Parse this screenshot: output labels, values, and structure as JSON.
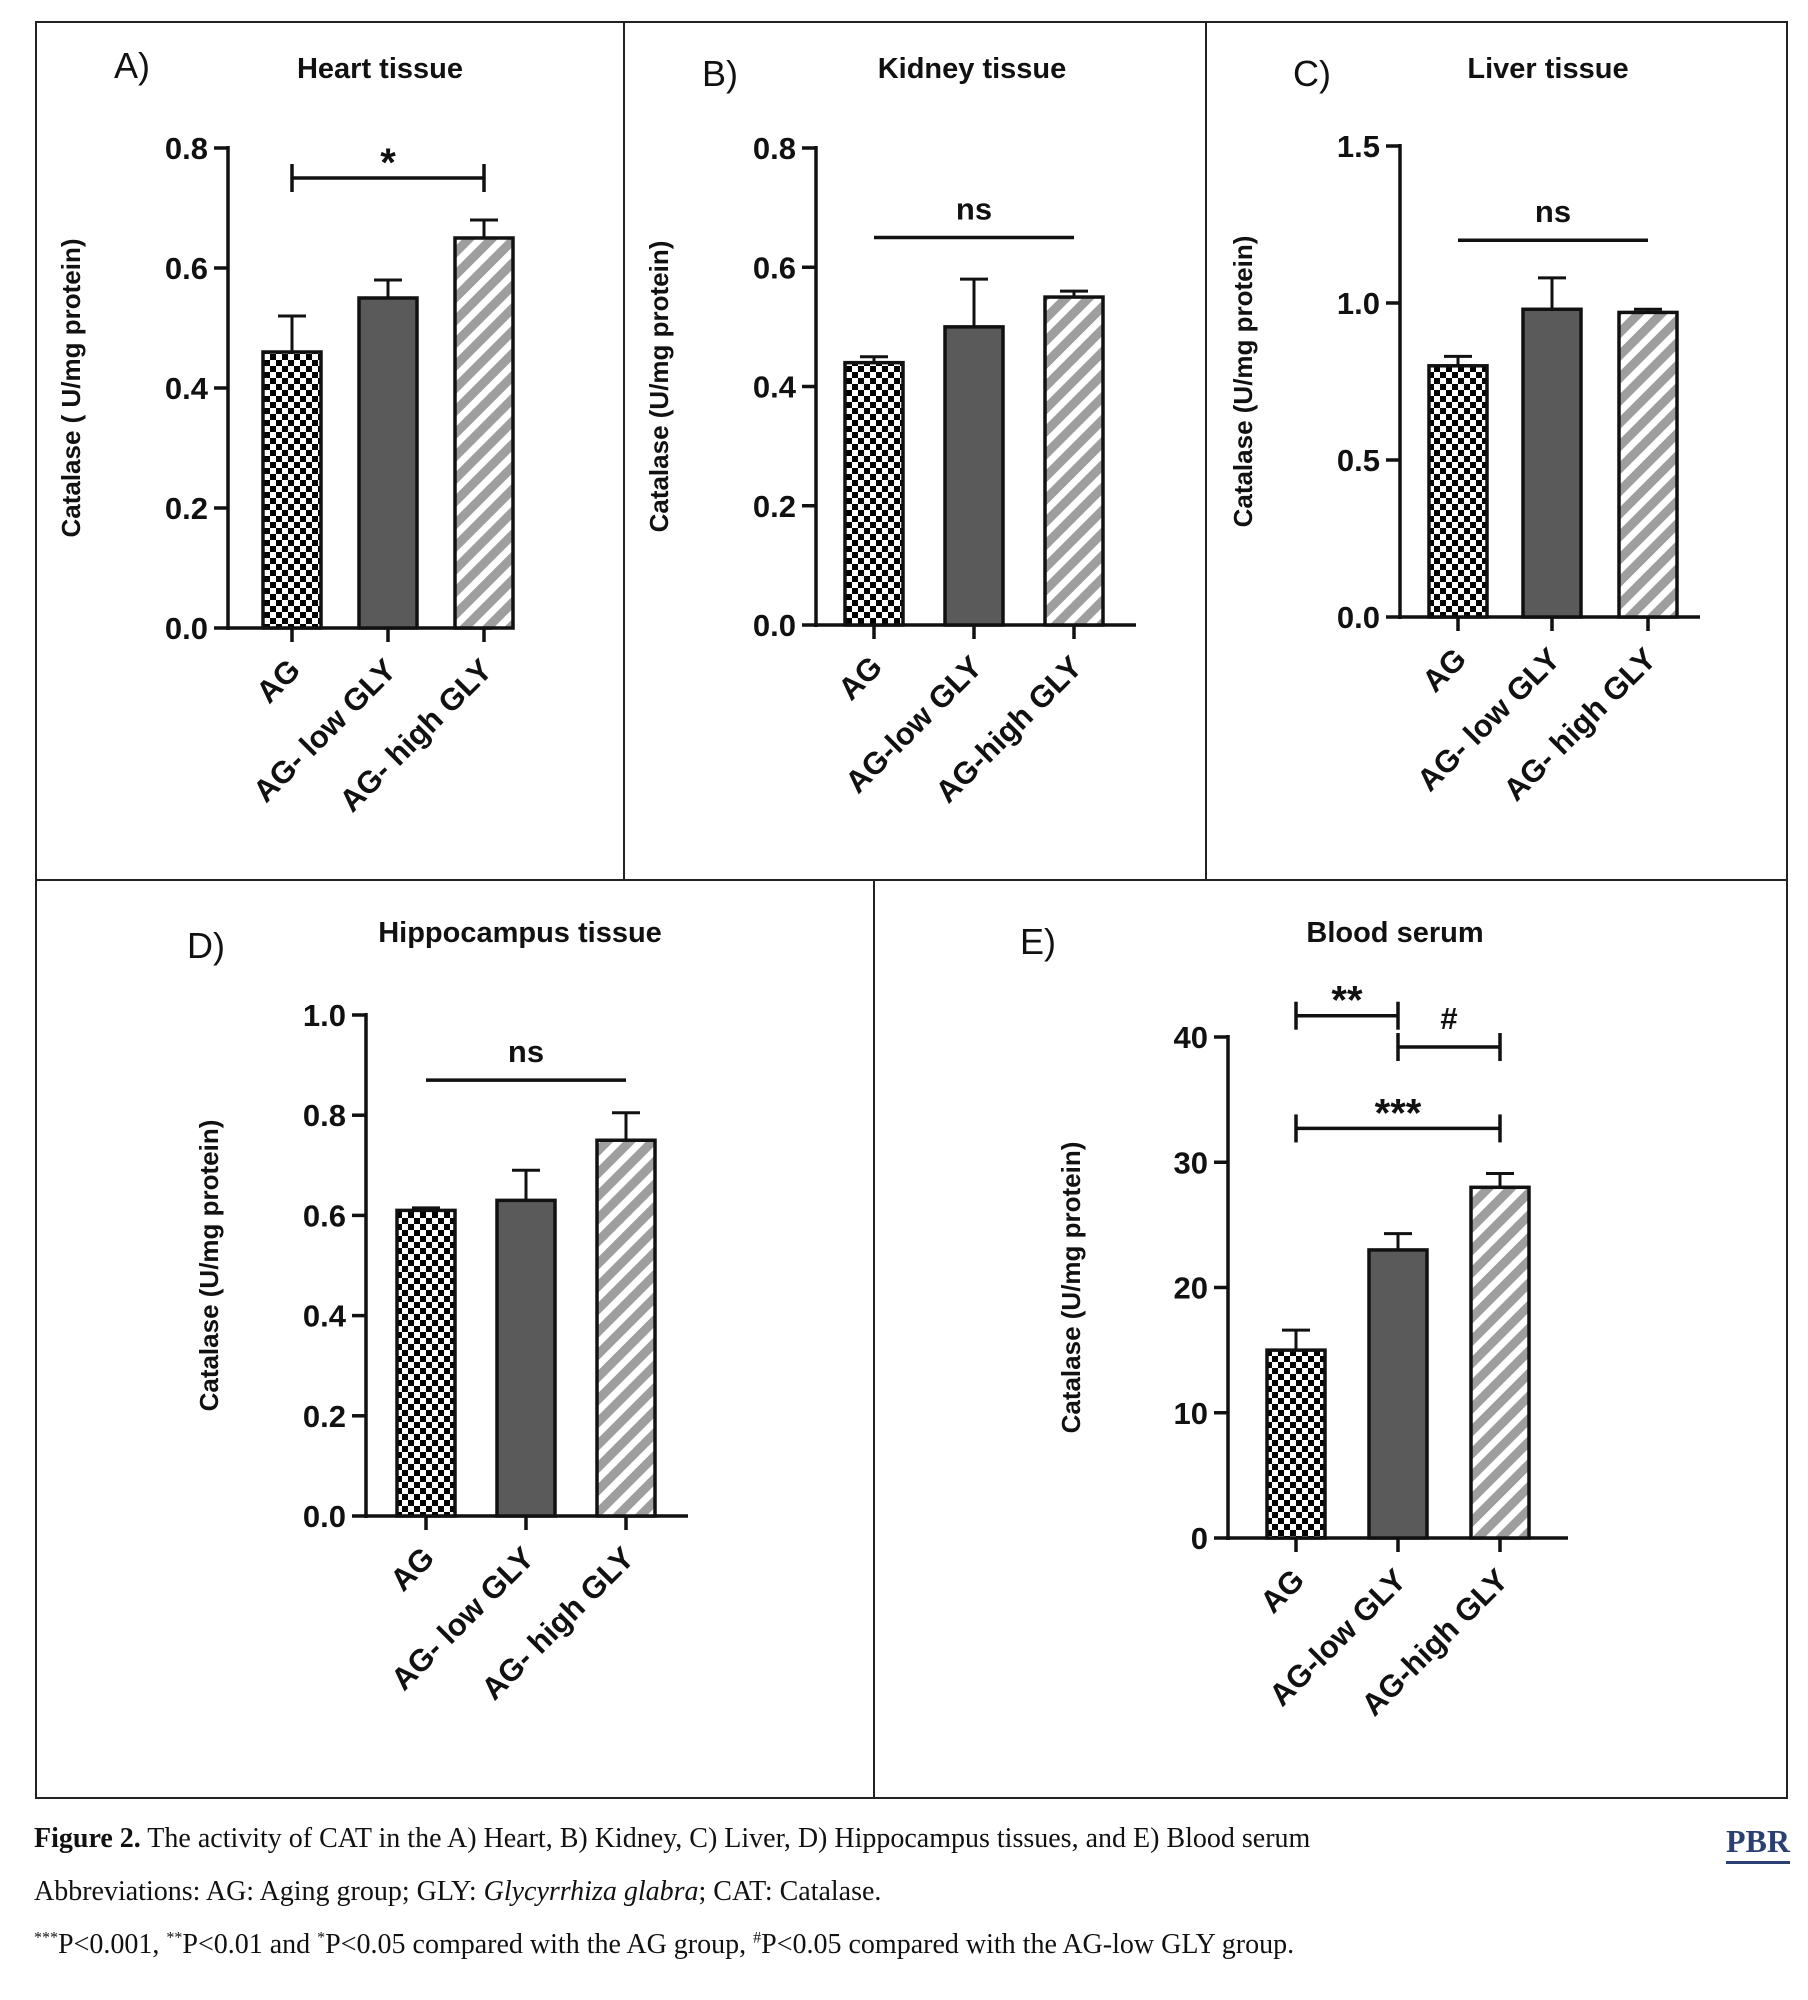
{
  "chart_data": [
    {
      "type": "bar",
      "panel_label": "A)",
      "title": "Heart tissue",
      "ylabel": "Catalase ( U/mg protein)",
      "categories": [
        "AG",
        "AG- low GLY",
        "AG- high GLY"
      ],
      "values": [
        0.46,
        0.55,
        0.65
      ],
      "errors": [
        0.06,
        0.03,
        0.03
      ],
      "ylim": [
        0,
        0.8
      ],
      "yticks": [
        0,
        0.2,
        0.4,
        0.6,
        0.8
      ],
      "ytick_labels": [
        "0.0",
        "0.2",
        "0.4",
        "0.6",
        "0.8"
      ],
      "annotations": [
        {
          "from": 0,
          "to": 2,
          "y": 0.75,
          "text": "*",
          "ends": true
        }
      ]
    },
    {
      "type": "bar",
      "panel_label": "B)",
      "title": "Kidney tissue",
      "ylabel": "Catalase (U/mg protein)",
      "categories": [
        "AG",
        "AG-low GLY",
        "AG-high GLY"
      ],
      "values": [
        0.44,
        0.5,
        0.55
      ],
      "errors": [
        0.01,
        0.08,
        0.01
      ],
      "ylim": [
        0,
        0.8
      ],
      "yticks": [
        0,
        0.2,
        0.4,
        0.6,
        0.8
      ],
      "ytick_labels": [
        "0.0",
        "0.2",
        "0.4",
        "0.6",
        "0.8"
      ],
      "annotations": [
        {
          "from": 0,
          "to": 2,
          "y": 0.65,
          "text": "ns",
          "ends": false
        }
      ]
    },
    {
      "type": "bar",
      "panel_label": "C)",
      "title": "Liver tissue",
      "ylabel": "Catalase (U/mg protein)",
      "categories": [
        "AG",
        "AG- low GLY",
        "AG- high GLY"
      ],
      "values": [
        0.8,
        0.98,
        0.97
      ],
      "errors": [
        0.03,
        0.1,
        0.01
      ],
      "ylim": [
        0,
        1.5
      ],
      "yticks": [
        0,
        0.5,
        1.0,
        1.5
      ],
      "ytick_labels": [
        "0.0",
        "0.5",
        "1.0",
        "1.5"
      ],
      "annotations": [
        {
          "from": 0,
          "to": 2,
          "y": 1.2,
          "text": "ns",
          "ends": false
        }
      ]
    },
    {
      "type": "bar",
      "panel_label": "D)",
      "title": "Hippocampus  tissue",
      "ylabel": "Catalase (U/mg protein)",
      "categories": [
        "AG",
        "AG- low GLY",
        "AG- high GLY"
      ],
      "values": [
        0.61,
        0.63,
        0.75
      ],
      "errors": [
        0.005,
        0.06,
        0.055
      ],
      "ylim": [
        0,
        1.0
      ],
      "yticks": [
        0,
        0.2,
        0.4,
        0.6,
        0.8,
        1.0
      ],
      "ytick_labels": [
        "0.0",
        "0.2",
        "0.4",
        "0.6",
        "0.8",
        "1.0"
      ],
      "annotations": [
        {
          "from": 0,
          "to": 2,
          "y": 0.87,
          "text": "ns",
          "ends": false
        }
      ]
    },
    {
      "type": "bar",
      "panel_label": "E)",
      "title": "Blood serum",
      "ylabel": "Catalase (U/mg protein)",
      "categories": [
        "AG",
        "AG-low GLY",
        "AG-high GLY"
      ],
      "values": [
        15,
        23,
        28
      ],
      "errors": [
        1.6,
        1.3,
        1.1
      ],
      "ylim": [
        0,
        40
      ],
      "yticks": [
        0,
        10,
        20,
        30,
        40
      ],
      "ytick_labels": [
        "0",
        "10",
        "20",
        "30",
        "40"
      ],
      "annotations": [
        {
          "from": 0,
          "to": 1,
          "y": 41.7,
          "text": "**",
          "ends": true
        },
        {
          "from": 1,
          "to": 2,
          "y": 39.2,
          "text": "#",
          "ends": true
        },
        {
          "from": 0,
          "to": 2,
          "y": 32.7,
          "text": "***",
          "ends": true
        }
      ]
    }
  ],
  "caption": {
    "figure_label": "Figure 2.",
    "line1": " The activity of CAT in the A) Heart, B) Kidney, C) Liver, D) Hippocampus tissues, and E) Blood serum",
    "line2_prefix": "Abbreviations: AG: Aging group; GLY: ",
    "line2_italic": "Glycyrrhiza glabra",
    "line2_suffix": "; CAT: Catalase.",
    "line3_sup1": "***",
    "line3_a": "P<0.001, ",
    "line3_sup2": "**",
    "line3_b": "P<0.01 and ",
    "line3_sup3": "*",
    "line3_c": "P<0.05 compared with the AG group, ",
    "line3_sup4": "#",
    "line3_d": "P<0.05 compared with the AG-low GLY group."
  },
  "logo": "PBR",
  "colors": {
    "bar_ag_pattern": "checkerboard black/white",
    "bar_low": "#5a5a5a",
    "bar_high_pattern": "grey diagonal stripes #9e9e9e"
  }
}
